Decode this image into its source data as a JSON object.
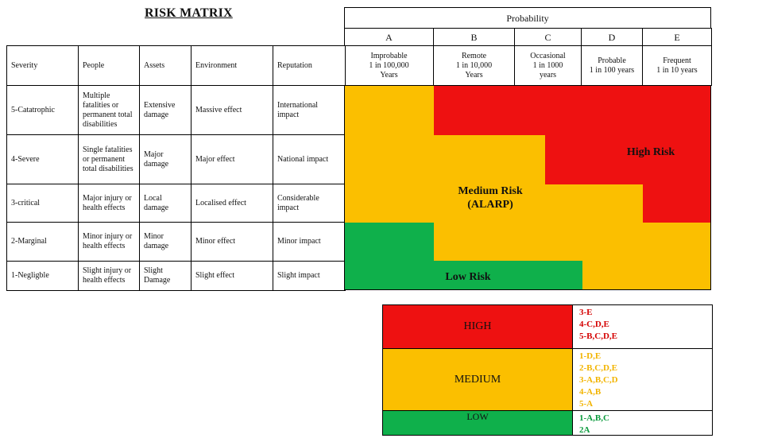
{
  "title": "RISK MATRIX",
  "probability": {
    "header": "Probability",
    "letters": [
      "A",
      "B",
      "C",
      "D",
      "E"
    ],
    "descriptions": [
      "Improbable\n1 in 100,000\nYears",
      "Remote\n1 in 10,000\nYears",
      "Occasional\n1 in 1000\nyears",
      "Probable\n1 in 100 years",
      "Frequent\n1 in 10 years"
    ]
  },
  "consequence_headers": [
    "Severity",
    "People",
    "Assets",
    "Environment",
    "Reputation"
  ],
  "rows": [
    [
      "5-Catatrophic",
      "Multiple fatalities or permanent total disabilities",
      "Extensive damage",
      "Massive effect",
      "International impact"
    ],
    [
      "4-Severe",
      "Single fatalities or permanent total disabilities",
      "Major damage",
      "Major effect",
      "National impact"
    ],
    [
      "3-critical",
      "Major injury or health effects",
      "Local damage",
      "Localised effect",
      "Considerable impact"
    ],
    [
      "2-Marginal",
      "Minor injury or health effects",
      "Minor damage",
      "Minor effect",
      "Minor impact"
    ],
    [
      "1-Negligble",
      "Slight injury or health effects",
      "Slight Damage",
      "Slight effect",
      "Slight impact"
    ]
  ],
  "zones": {
    "high": "High Risk",
    "medium": "Medium Risk\n(ALARP)",
    "low": "Low Risk"
  },
  "colors": {
    "high": "#ee1111",
    "medium": "#fbbf00",
    "low": "#0fb04b",
    "medium_text": "#f2b400",
    "high_text": "#d40000",
    "low_text": "#0a9a3c"
  },
  "legend": {
    "high": {
      "label": "HIGH",
      "items": [
        "3-E",
        "4-C,D,E",
        "5-B,C,D,E"
      ]
    },
    "medium": {
      "label": "MEDIUM",
      "items": [
        "1-D,E",
        "2-B,C,D,E",
        "3-A,B,C,D",
        "4-A,B",
        "5-A"
      ]
    },
    "low": {
      "label": "LOW",
      "items": [
        "1-A,B,C",
        "2A"
      ]
    }
  }
}
